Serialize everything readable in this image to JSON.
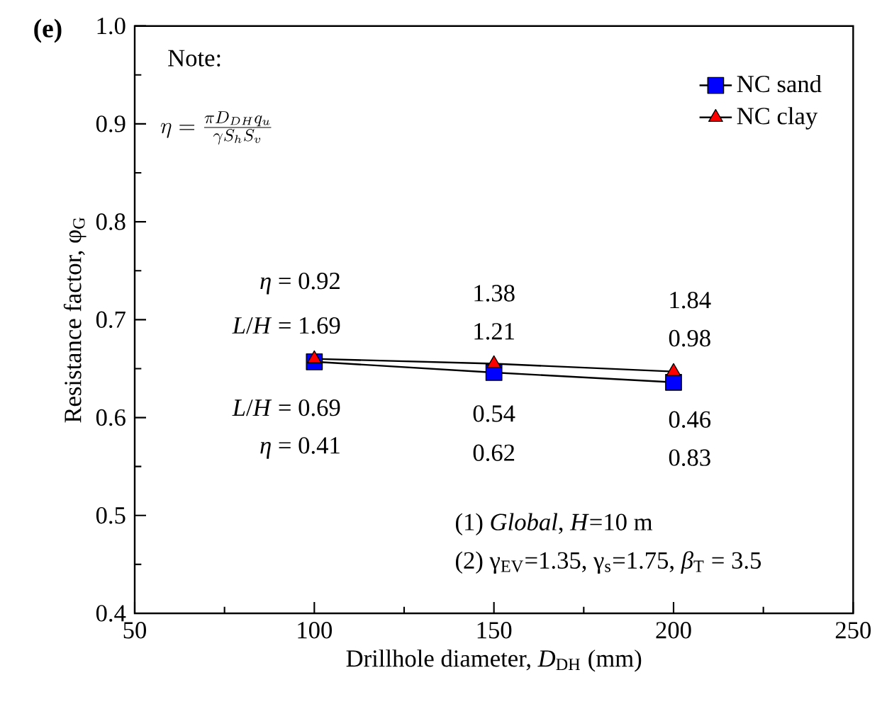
{
  "chart_data": {
    "type": "line",
    "title": "(e)",
    "xlabel": "Drillhole diameter, *D*$_{DH}$ (mm)",
    "ylabel": "Resistance factor, φ$_{G}$",
    "x": [
      100,
      150,
      200
    ],
    "series": [
      {
        "name": "NC sand",
        "color": "#0000ff",
        "marker": "square",
        "values": [
          0.657,
          0.646,
          0.636
        ]
      },
      {
        "name": "NC clay",
        "color": "#ff0000",
        "marker": "triangle",
        "values": [
          0.66,
          0.655,
          0.647
        ]
      }
    ],
    "xlim": [
      50,
      250
    ],
    "ylim": [
      0.4,
      1.0
    ],
    "xticks": [
      50,
      100,
      150,
      200,
      250
    ],
    "yticks": [
      0.4,
      0.5,
      0.6,
      0.7,
      0.8,
      0.9,
      {
        "value": 1.0,
        "label": "1.0"
      }
    ],
    "legend": "top right",
    "grid": false,
    "line_style": "solid",
    "annotations": [
      "Note:",
      "\\eta = \\frac{\\pi D_{DH} q_u}{\\gamma S_h S_v}",
      "*η* = 0.92",
      "*L*/*H* = 1.69",
      "1.38",
      "1.21",
      "1.84",
      "0.98",
      "*L*/*H* = 0.69",
      "*η* = 0.41",
      "0.54",
      "0.62",
      "0.46",
      "0.83",
      "(1) *Global*, *H*=10 m",
      "(2) γ$_{EV}$=1.35, γ$_{s}$=1.75, *β*$_{T}$ = 3.5"
    ]
  }
}
